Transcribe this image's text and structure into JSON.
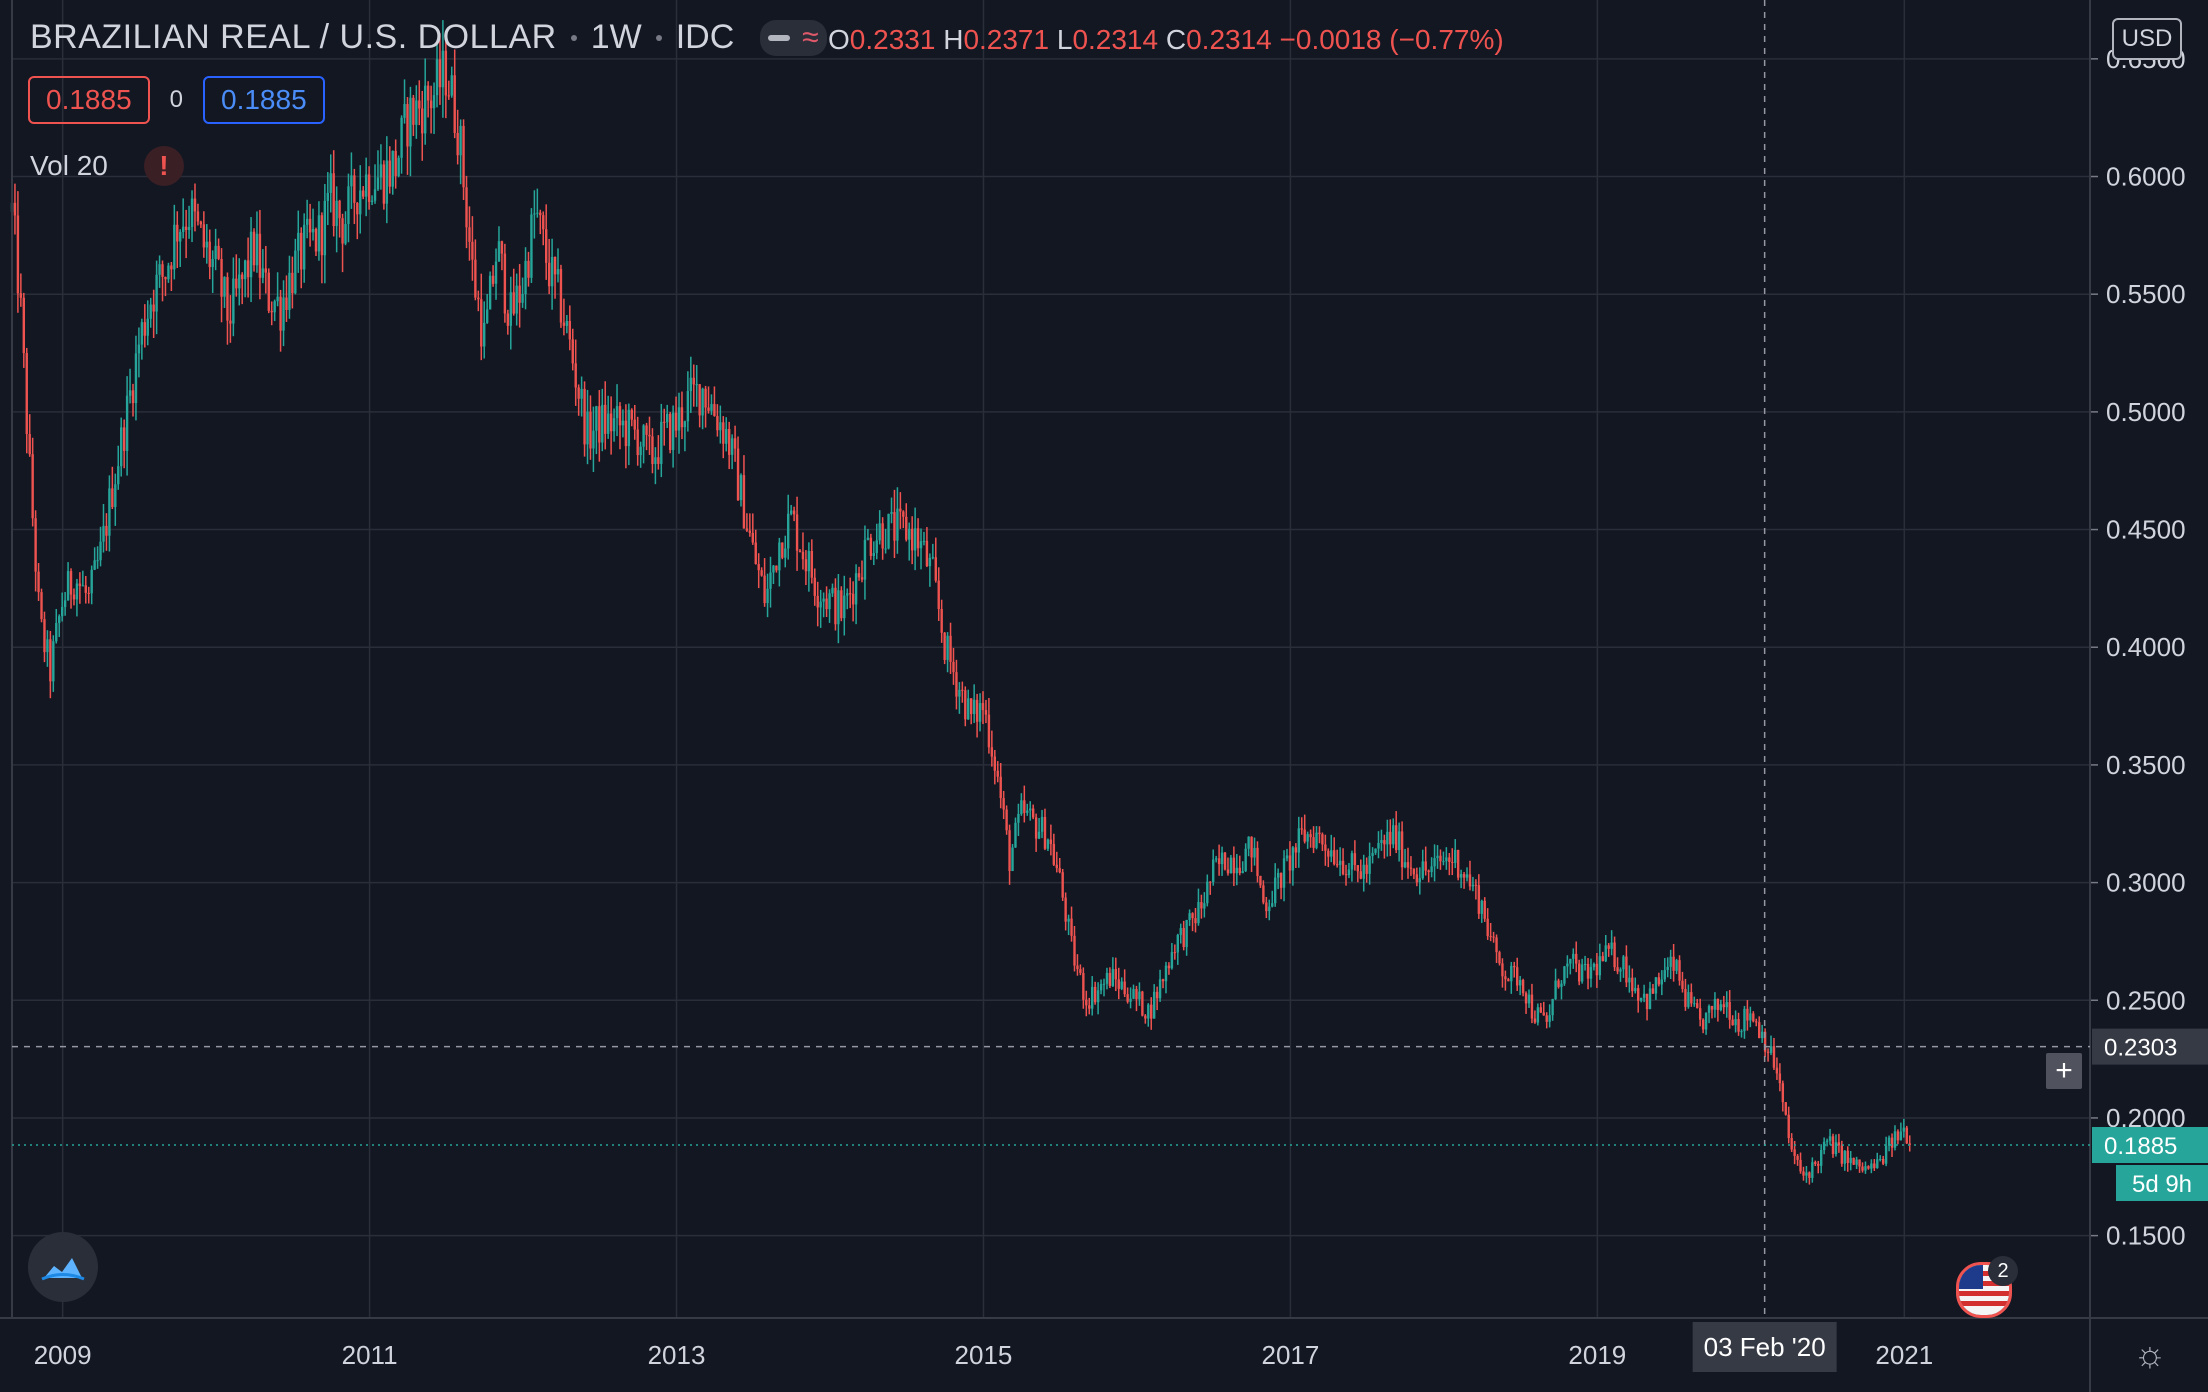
{
  "header": {
    "symbol": "BRAZILIAN REAL / U.S. DOLLAR",
    "interval": "1W",
    "exchange": "IDC",
    "ohlc": {
      "o_label": "O",
      "o": "0.2331",
      "h_label": "H",
      "h": "0.2371",
      "l_label": "L",
      "l": "0.2314",
      "c_label": "C",
      "c": "0.2314",
      "change": "−0.0018 (−0.77%)"
    }
  },
  "values_row": {
    "sell": "0.1885",
    "spread": "0",
    "buy": "0.1885"
  },
  "volume_indicator": {
    "label": "Vol 20",
    "warning": "!"
  },
  "currency": "USD",
  "crosshair": {
    "price_label": "0.2303",
    "date_label": "03 Feb '20"
  },
  "last_price": {
    "label": "0.1885",
    "countdown": "5d 9h"
  },
  "events_badge": "2",
  "colors": {
    "up": "#26a69a",
    "down": "#ef5350",
    "bg": "#131722",
    "grid": "#2a2e39",
    "text": "#d1d4dc"
  },
  "icons": [
    "tradingview-logo-icon",
    "plus-icon",
    "us-flag-icon",
    "settings-gear-icon",
    "warning-icon",
    "chart-mode-icon"
  ],
  "chart_data": {
    "type": "candlestick",
    "title": "BRAZILIAN REAL / U.S. DOLLAR",
    "ylim": [
      0.115,
      0.675
    ],
    "xlim": [
      2008.67,
      2022.21
    ],
    "y_ticks": [
      "0.1500",
      "0.2000",
      "0.2500",
      "0.3000",
      "0.3500",
      "0.4000",
      "0.4500",
      "0.5000",
      "0.5500",
      "0.6000",
      "0.6500"
    ],
    "x_ticks": [
      {
        "label": "2009",
        "x": 2009.0
      },
      {
        "label": "2011",
        "x": 2011.0
      },
      {
        "label": "2013",
        "x": 2013.0
      },
      {
        "label": "2015",
        "x": 2015.0
      },
      {
        "label": "2017",
        "x": 2017.0
      },
      {
        "label": "2019",
        "x": 2019.0
      },
      {
        "label": "2021",
        "x": 2021.0
      }
    ],
    "crosshair": {
      "x": 2020.09,
      "y": 0.2303
    },
    "last_value": 0.1885,
    "price_path": [
      [
        2008.67,
        0.585
      ],
      [
        2008.72,
        0.55
      ],
      [
        2008.78,
        0.48
      ],
      [
        2008.85,
        0.41
      ],
      [
        2008.92,
        0.39
      ],
      [
        2009.0,
        0.42
      ],
      [
        2009.08,
        0.43
      ],
      [
        2009.17,
        0.42
      ],
      [
        2009.25,
        0.44
      ],
      [
        2009.33,
        0.47
      ],
      [
        2009.42,
        0.5
      ],
      [
        2009.5,
        0.53
      ],
      [
        2009.58,
        0.55
      ],
      [
        2009.67,
        0.56
      ],
      [
        2009.75,
        0.58
      ],
      [
        2009.83,
        0.585
      ],
      [
        2009.92,
        0.57
      ],
      [
        2010.0,
        0.56
      ],
      [
        2010.08,
        0.54
      ],
      [
        2010.17,
        0.555
      ],
      [
        2010.25,
        0.57
      ],
      [
        2010.33,
        0.55
      ],
      [
        2010.42,
        0.545
      ],
      [
        2010.5,
        0.56
      ],
      [
        2010.58,
        0.57
      ],
      [
        2010.67,
        0.575
      ],
      [
        2010.75,
        0.59
      ],
      [
        2010.83,
        0.58
      ],
      [
        2010.92,
        0.595
      ],
      [
        2011.0,
        0.6
      ],
      [
        2011.08,
        0.6
      ],
      [
        2011.17,
        0.605
      ],
      [
        2011.25,
        0.625
      ],
      [
        2011.33,
        0.63
      ],
      [
        2011.42,
        0.635
      ],
      [
        2011.5,
        0.645
      ],
      [
        2011.58,
        0.62
      ],
      [
        2011.67,
        0.56
      ],
      [
        2011.75,
        0.53
      ],
      [
        2011.83,
        0.57
      ],
      [
        2011.92,
        0.54
      ],
      [
        2012.0,
        0.555
      ],
      [
        2012.08,
        0.585
      ],
      [
        2012.17,
        0.56
      ],
      [
        2012.25,
        0.545
      ],
      [
        2012.33,
        0.52
      ],
      [
        2012.42,
        0.49
      ],
      [
        2012.5,
        0.495
      ],
      [
        2012.58,
        0.495
      ],
      [
        2012.67,
        0.493
      ],
      [
        2012.75,
        0.49
      ],
      [
        2012.83,
        0.48
      ],
      [
        2012.92,
        0.49
      ],
      [
        2013.0,
        0.495
      ],
      [
        2013.08,
        0.505
      ],
      [
        2013.17,
        0.51
      ],
      [
        2013.25,
        0.5
      ],
      [
        2013.33,
        0.49
      ],
      [
        2013.42,
        0.465
      ],
      [
        2013.5,
        0.44
      ],
      [
        2013.58,
        0.42
      ],
      [
        2013.67,
        0.445
      ],
      [
        2013.75,
        0.455
      ],
      [
        2013.83,
        0.44
      ],
      [
        2013.92,
        0.425
      ],
      [
        2014.0,
        0.42
      ],
      [
        2014.08,
        0.415
      ],
      [
        2014.17,
        0.43
      ],
      [
        2014.25,
        0.445
      ],
      [
        2014.33,
        0.45
      ],
      [
        2014.42,
        0.45
      ],
      [
        2014.5,
        0.45
      ],
      [
        2014.58,
        0.445
      ],
      [
        2014.67,
        0.43
      ],
      [
        2014.75,
        0.4
      ],
      [
        2014.83,
        0.385
      ],
      [
        2014.92,
        0.37
      ],
      [
        2015.0,
        0.375
      ],
      [
        2015.08,
        0.35
      ],
      [
        2015.17,
        0.31
      ],
      [
        2015.25,
        0.33
      ],
      [
        2015.33,
        0.325
      ],
      [
        2015.42,
        0.32
      ],
      [
        2015.5,
        0.3
      ],
      [
        2015.58,
        0.27
      ],
      [
        2015.67,
        0.25
      ],
      [
        2015.75,
        0.255
      ],
      [
        2015.83,
        0.26
      ],
      [
        2015.92,
        0.255
      ],
      [
        2016.0,
        0.25
      ],
      [
        2016.08,
        0.245
      ],
      [
        2016.17,
        0.26
      ],
      [
        2016.25,
        0.275
      ],
      [
        2016.33,
        0.28
      ],
      [
        2016.42,
        0.29
      ],
      [
        2016.5,
        0.305
      ],
      [
        2016.58,
        0.31
      ],
      [
        2016.67,
        0.31
      ],
      [
        2016.75,
        0.315
      ],
      [
        2016.83,
        0.29
      ],
      [
        2016.92,
        0.3
      ],
      [
        2017.0,
        0.31
      ],
      [
        2017.08,
        0.32
      ],
      [
        2017.17,
        0.32
      ],
      [
        2017.25,
        0.315
      ],
      [
        2017.33,
        0.31
      ],
      [
        2017.42,
        0.305
      ],
      [
        2017.5,
        0.305
      ],
      [
        2017.58,
        0.315
      ],
      [
        2017.67,
        0.32
      ],
      [
        2017.75,
        0.31
      ],
      [
        2017.83,
        0.305
      ],
      [
        2017.92,
        0.305
      ],
      [
        2018.0,
        0.31
      ],
      [
        2018.08,
        0.31
      ],
      [
        2018.17,
        0.3
      ],
      [
        2018.25,
        0.29
      ],
      [
        2018.33,
        0.27
      ],
      [
        2018.42,
        0.26
      ],
      [
        2018.5,
        0.26
      ],
      [
        2018.58,
        0.245
      ],
      [
        2018.67,
        0.24
      ],
      [
        2018.75,
        0.26
      ],
      [
        2018.83,
        0.265
      ],
      [
        2018.92,
        0.26
      ],
      [
        2019.0,
        0.265
      ],
      [
        2019.08,
        0.27
      ],
      [
        2019.17,
        0.265
      ],
      [
        2019.25,
        0.255
      ],
      [
        2019.33,
        0.25
      ],
      [
        2019.42,
        0.26
      ],
      [
        2019.5,
        0.265
      ],
      [
        2019.58,
        0.25
      ],
      [
        2019.67,
        0.24
      ],
      [
        2019.75,
        0.245
      ],
      [
        2019.83,
        0.25
      ],
      [
        2019.92,
        0.24
      ],
      [
        2020.0,
        0.245
      ],
      [
        2020.08,
        0.235
      ],
      [
        2020.17,
        0.22
      ],
      [
        2020.25,
        0.19
      ],
      [
        2020.33,
        0.175
      ],
      [
        2020.42,
        0.18
      ],
      [
        2020.5,
        0.19
      ],
      [
        2020.58,
        0.185
      ],
      [
        2020.67,
        0.18
      ],
      [
        2020.75,
        0.178
      ],
      [
        2020.83,
        0.18
      ],
      [
        2020.92,
        0.19
      ],
      [
        2021.0,
        0.195
      ],
      [
        2021.05,
        0.1885
      ]
    ]
  }
}
